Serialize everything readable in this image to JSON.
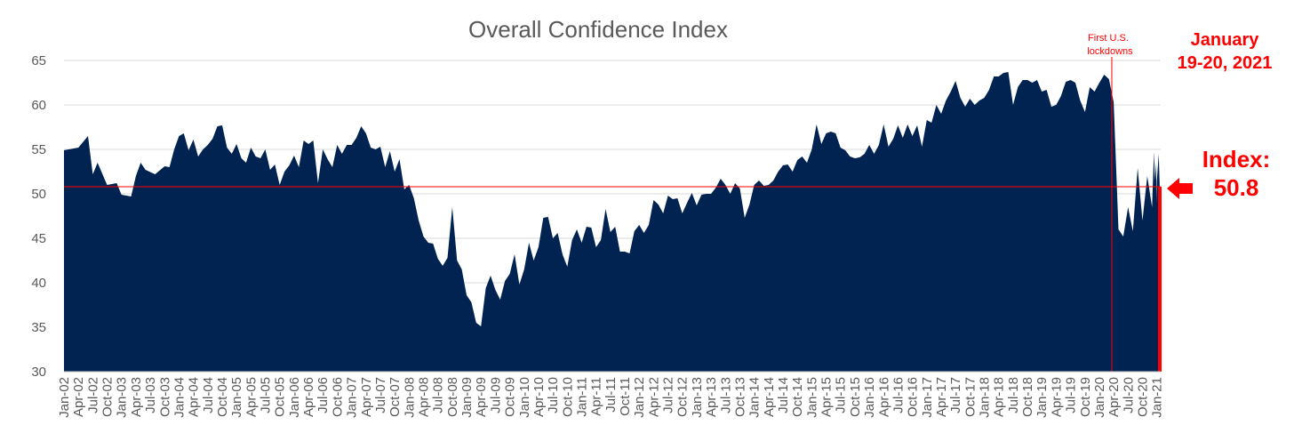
{
  "chart_data": {
    "type": "area",
    "title": "Overall Confidence Index",
    "xlabel": "",
    "ylabel": "",
    "ylim": [
      30,
      65
    ],
    "yticks": [
      30,
      35,
      40,
      45,
      50,
      55,
      60,
      65
    ],
    "grid": true,
    "legend": "none",
    "x_start": "Jan-02",
    "x_end": "Jan-21",
    "xtick_labels": [
      "Jan-02",
      "Apr-02",
      "Jul-02",
      "Oct-02",
      "Jan-03",
      "Apr-03",
      "Jul-03",
      "Oct-03",
      "Jan-04",
      "Apr-04",
      "Jul-04",
      "Oct-04",
      "Jan-05",
      "Apr-05",
      "Jul-05",
      "Oct-05",
      "Jan-06",
      "Apr-06",
      "Jul-06",
      "Oct-06",
      "Jan-07",
      "Apr-07",
      "Jul-07",
      "Oct-07",
      "Jan-08",
      "Apr-08",
      "Jul-08",
      "Oct-08",
      "Jan-09",
      "Apr-09",
      "Jul-09",
      "Oct-09",
      "Jan-10",
      "Apr-10",
      "Jul-10",
      "Oct-10",
      "Jan-11",
      "Apr-11",
      "Jul-11",
      "Oct-11",
      "Jan-12",
      "Apr-12",
      "Jul-12",
      "Oct-12",
      "Jan-13",
      "Apr-13",
      "Jul-13",
      "Oct-13",
      "Jan-14",
      "Apr-14",
      "Jul-14",
      "Oct-14",
      "Jan-15",
      "Apr-15",
      "Jul-15",
      "Oct-15",
      "Jan-16",
      "Apr-16",
      "Jul-16",
      "Oct-16",
      "Jan-17",
      "Apr-17",
      "Jul-17",
      "Oct-17",
      "Jan-18",
      "Apr-18",
      "Jul-18",
      "Oct-18",
      "Jan-19",
      "Apr-19",
      "Jul-19",
      "Oct-19",
      "Jan-20",
      "Apr-20",
      "Jul-20",
      "Oct-20",
      "Jan-21"
    ],
    "series": [
      {
        "points": [
          [
            "Jan-02",
            54.9
          ],
          [
            "Apr-02",
            55.2
          ],
          [
            "Jun-02",
            56.5
          ],
          [
            "Jul-02",
            52.2
          ],
          [
            "Aug-02",
            53.5
          ],
          [
            "Oct-02",
            51.0
          ],
          [
            "Dec-02",
            51.2
          ],
          [
            "Jan-03",
            49.9
          ],
          [
            "Mar-03",
            49.7
          ],
          [
            "Apr-03",
            52.0
          ],
          [
            "May-03",
            53.5
          ],
          [
            "Jun-03",
            52.7
          ],
          [
            "Aug-03",
            52.2
          ],
          [
            "Oct-03",
            53.1
          ],
          [
            "Nov-03",
            53.0
          ],
          [
            "Dec-03",
            55.0
          ],
          [
            "Jan-04",
            56.5
          ],
          [
            "Feb-04",
            56.8
          ],
          [
            "Mar-04",
            54.9
          ],
          [
            "Apr-04",
            56.1
          ],
          [
            "May-04",
            54.2
          ],
          [
            "Jun-04",
            55.0
          ],
          [
            "Jul-04",
            55.5
          ],
          [
            "Aug-04",
            56.2
          ],
          [
            "Sep-04",
            57.6
          ],
          [
            "Oct-04",
            57.7
          ],
          [
            "Nov-04",
            55.2
          ],
          [
            "Dec-04",
            54.5
          ],
          [
            "Jan-05",
            55.6
          ],
          [
            "Feb-05",
            54.0
          ],
          [
            "Mar-05",
            53.5
          ],
          [
            "Apr-05",
            55.2
          ],
          [
            "May-05",
            54.2
          ],
          [
            "Jun-05",
            54.0
          ],
          [
            "Jul-05",
            55.0
          ],
          [
            "Aug-05",
            52.7
          ],
          [
            "Sep-05",
            53.3
          ],
          [
            "Oct-05",
            51.0
          ],
          [
            "Nov-05",
            52.5
          ],
          [
            "Dec-05",
            53.2
          ],
          [
            "Jan-06",
            54.3
          ],
          [
            "Feb-06",
            53.0
          ],
          [
            "Mar-06",
            56.0
          ],
          [
            "Apr-06",
            55.6
          ],
          [
            "May-06",
            56.0
          ],
          [
            "Jun-06",
            51.2
          ],
          [
            "Jul-06",
            55.0
          ],
          [
            "Aug-06",
            53.9
          ],
          [
            "Sep-06",
            53.0
          ],
          [
            "Oct-06",
            55.5
          ],
          [
            "Nov-06",
            54.5
          ],
          [
            "Dec-06",
            55.5
          ],
          [
            "Jan-07",
            55.5
          ],
          [
            "Feb-07",
            56.3
          ],
          [
            "Mar-07",
            57.6
          ],
          [
            "Apr-07",
            56.8
          ],
          [
            "May-07",
            55.2
          ],
          [
            "Jun-07",
            55.0
          ],
          [
            "Jul-07",
            55.3
          ],
          [
            "Aug-07",
            53.0
          ],
          [
            "Sep-07",
            54.8
          ],
          [
            "Oct-07",
            52.5
          ],
          [
            "Nov-07",
            53.9
          ],
          [
            "Dec-07",
            50.5
          ],
          [
            "Jan-08",
            51.0
          ],
          [
            "Feb-08",
            49.5
          ],
          [
            "Mar-08",
            47.0
          ],
          [
            "Apr-08",
            45.2
          ],
          [
            "May-08",
            44.5
          ],
          [
            "Jun-08",
            44.4
          ],
          [
            "Jul-08",
            42.7
          ],
          [
            "Aug-08",
            41.9
          ],
          [
            "Sep-08",
            42.8
          ],
          [
            "Oct-08",
            48.5
          ],
          [
            "Nov-08",
            42.5
          ],
          [
            "Dec-08",
            41.5
          ],
          [
            "Jan-09",
            38.6
          ],
          [
            "Feb-09",
            37.8
          ],
          [
            "Mar-09",
            35.5
          ],
          [
            "Apr-09",
            35.1
          ],
          [
            "May-09",
            39.4
          ],
          [
            "Jun-09",
            40.8
          ],
          [
            "Jul-09",
            39.2
          ],
          [
            "Aug-09",
            38.1
          ],
          [
            "Sep-09",
            40.2
          ],
          [
            "Oct-09",
            41.0
          ],
          [
            "Nov-09",
            43.2
          ],
          [
            "Dec-09",
            39.8
          ],
          [
            "Jan-10",
            41.5
          ],
          [
            "Feb-10",
            44.5
          ],
          [
            "Mar-10",
            42.5
          ],
          [
            "Apr-10",
            44.0
          ],
          [
            "May-10",
            47.3
          ],
          [
            "Jun-10",
            47.4
          ],
          [
            "Jul-10",
            45.0
          ],
          [
            "Aug-10",
            45.6
          ],
          [
            "Sep-10",
            43.2
          ],
          [
            "Oct-10",
            41.8
          ],
          [
            "Nov-10",
            44.8
          ],
          [
            "Dec-10",
            46.0
          ],
          [
            "Jan-11",
            44.5
          ],
          [
            "Feb-11",
            46.3
          ],
          [
            "Mar-11",
            46.2
          ],
          [
            "Apr-11",
            44.0
          ],
          [
            "May-11",
            44.8
          ],
          [
            "Jun-11",
            48.3
          ],
          [
            "Jul-11",
            45.7
          ],
          [
            "Aug-11",
            46.3
          ],
          [
            "Sep-11",
            43.5
          ],
          [
            "Oct-11",
            43.5
          ],
          [
            "Nov-11",
            43.3
          ],
          [
            "Dec-11",
            45.8
          ],
          [
            "Jan-12",
            46.5
          ],
          [
            "Feb-12",
            45.6
          ],
          [
            "Mar-12",
            46.5
          ],
          [
            "Apr-12",
            49.3
          ],
          [
            "May-12",
            48.8
          ],
          [
            "Jun-12",
            47.8
          ],
          [
            "Jul-12",
            49.8
          ],
          [
            "Aug-12",
            49.4
          ],
          [
            "Sep-12",
            49.5
          ],
          [
            "Oct-12",
            47.8
          ],
          [
            "Nov-12",
            49.0
          ],
          [
            "Dec-12",
            50.1
          ],
          [
            "Jan-13",
            48.7
          ],
          [
            "Feb-13",
            49.9
          ],
          [
            "Mar-13",
            50.0
          ],
          [
            "Apr-13",
            50.0
          ],
          [
            "May-13",
            50.7
          ],
          [
            "Jun-13",
            51.7
          ],
          [
            "Jul-13",
            51.0
          ],
          [
            "Aug-13",
            50.0
          ],
          [
            "Sep-13",
            51.2
          ],
          [
            "Oct-13",
            50.6
          ],
          [
            "Nov-13",
            47.3
          ],
          [
            "Dec-13",
            48.8
          ],
          [
            "Jan-14",
            51.0
          ],
          [
            "Feb-14",
            51.5
          ],
          [
            "Mar-14",
            50.9
          ],
          [
            "Apr-14",
            51.0
          ],
          [
            "May-14",
            51.5
          ],
          [
            "Jun-14",
            52.5
          ],
          [
            "Jul-14",
            53.2
          ],
          [
            "Aug-14",
            53.3
          ],
          [
            "Sep-14",
            52.5
          ],
          [
            "Oct-14",
            53.8
          ],
          [
            "Nov-14",
            54.2
          ],
          [
            "Dec-14",
            53.5
          ],
          [
            "Jan-15",
            55.0
          ],
          [
            "Feb-15",
            57.8
          ],
          [
            "Mar-15",
            55.6
          ],
          [
            "Apr-15",
            56.8
          ],
          [
            "May-15",
            57.0
          ],
          [
            "Jun-15",
            56.8
          ],
          [
            "Jul-15",
            55.2
          ],
          [
            "Aug-15",
            54.9
          ],
          [
            "Sep-15",
            54.2
          ],
          [
            "Oct-15",
            54.0
          ],
          [
            "Nov-15",
            54.1
          ],
          [
            "Dec-15",
            54.5
          ],
          [
            "Jan-16",
            55.5
          ],
          [
            "Feb-16",
            54.5
          ],
          [
            "Mar-16",
            55.5
          ],
          [
            "Apr-16",
            57.8
          ],
          [
            "May-16",
            55.3
          ],
          [
            "Jun-16",
            56.2
          ],
          [
            "Jul-16",
            57.7
          ],
          [
            "Aug-16",
            56.3
          ],
          [
            "Sep-16",
            57.8
          ],
          [
            "Oct-16",
            56.5
          ],
          [
            "Nov-16",
            57.7
          ],
          [
            "Dec-16",
            55.3
          ],
          [
            "Jan-17",
            58.3
          ],
          [
            "Feb-17",
            58.0
          ],
          [
            "Mar-17",
            60.0
          ],
          [
            "Apr-17",
            59.0
          ],
          [
            "May-17",
            60.5
          ],
          [
            "Jun-17",
            61.5
          ],
          [
            "Jul-17",
            62.7
          ],
          [
            "Aug-17",
            60.8
          ],
          [
            "Sep-17",
            59.8
          ],
          [
            "Oct-17",
            60.7
          ],
          [
            "Nov-17",
            60.0
          ],
          [
            "Dec-17",
            60.5
          ],
          [
            "Jan-18",
            60.8
          ],
          [
            "Feb-18",
            61.7
          ],
          [
            "Mar-18",
            63.2
          ],
          [
            "Apr-18",
            63.2
          ],
          [
            "May-18",
            63.6
          ],
          [
            "Jun-18",
            63.7
          ],
          [
            "Jul-18",
            60.0
          ],
          [
            "Aug-18",
            62.0
          ],
          [
            "Sep-18",
            62.8
          ],
          [
            "Oct-18",
            62.8
          ],
          [
            "Nov-18",
            62.5
          ],
          [
            "Dec-18",
            62.8
          ],
          [
            "Jan-19",
            61.5
          ],
          [
            "Feb-19",
            61.7
          ],
          [
            "Mar-19",
            59.8
          ],
          [
            "Apr-19",
            60.0
          ],
          [
            "May-19",
            61.0
          ],
          [
            "Jun-19",
            62.6
          ],
          [
            "Jul-19",
            62.8
          ],
          [
            "Aug-19",
            62.5
          ],
          [
            "Sep-19",
            60.5
          ],
          [
            "Oct-19",
            59.2
          ],
          [
            "Nov-19",
            62.0
          ],
          [
            "Dec-19",
            61.5
          ],
          [
            "Jan-20",
            62.5
          ],
          [
            "Feb-20",
            63.4
          ],
          [
            "Mar-20",
            62.9
          ],
          [
            "Apr-20",
            60.3
          ],
          [
            "May-20",
            46.0
          ],
          [
            "Jun-20",
            45.2
          ],
          [
            "Jul-20",
            48.5
          ],
          [
            "Aug-20",
            45.8
          ],
          [
            "Sep-20",
            52.9
          ],
          [
            "Oct-20",
            47.0
          ],
          [
            "Nov-20",
            52.0
          ],
          [
            "Dec-20",
            48.5
          ],
          [
            "Dec-20b",
            54.7
          ],
          [
            "Dec-20c",
            51.5
          ],
          [
            "Dec-20d",
            53.5
          ],
          [
            "Dec-20e",
            49.0
          ],
          [
            "Jan-21",
            51.5
          ],
          [
            "Jan-21b",
            54.5
          ],
          [
            "Jan-21c",
            50.8
          ]
        ]
      }
    ],
    "reference_line": 50.8,
    "annotations": {
      "lockdown_line_1": "First U.S.",
      "lockdown_line_2": "lockdowns",
      "date_line_1": "January",
      "date_line_2": "19-20, 2021",
      "index_line_1": "Index:",
      "index_line_2": "50.8"
    },
    "colors": {
      "area": "#002352",
      "reference": "#ff0000",
      "grid": "#d9d9d9",
      "text": "#595959",
      "annotation": "#ff0000"
    }
  }
}
